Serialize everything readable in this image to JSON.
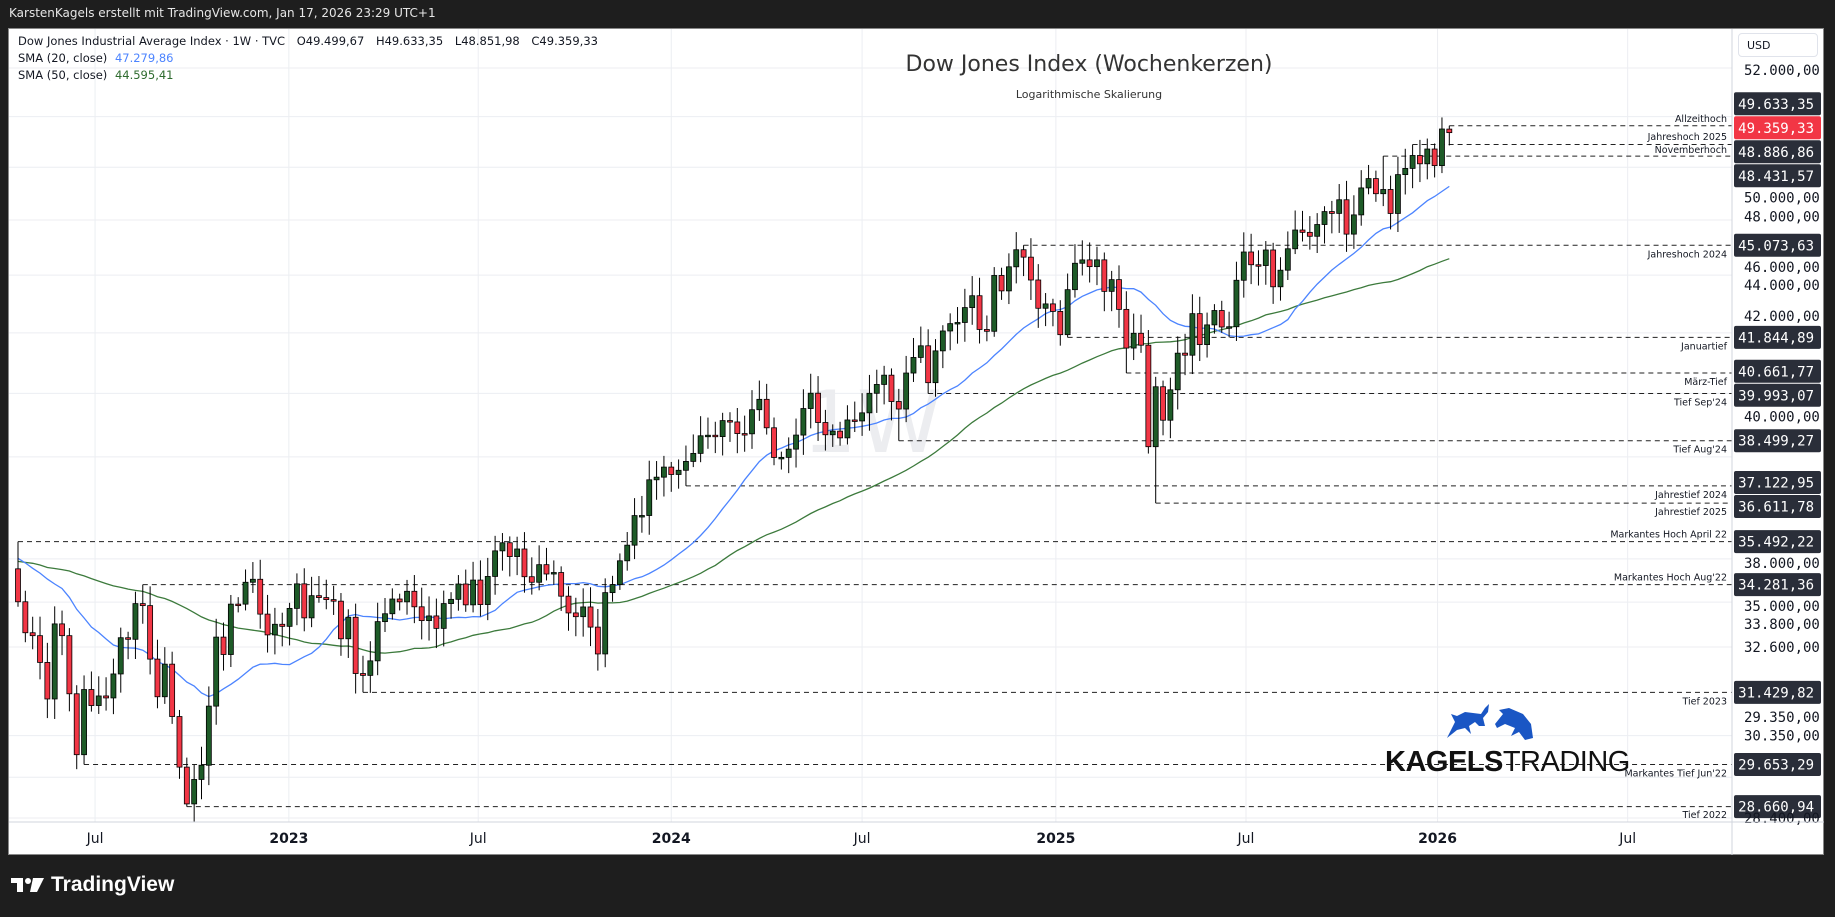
{
  "header": {
    "credit": "KarstenKagels erstellt mit TradingView.com, Jan 17, 2026 23:29 UTC+1"
  },
  "legend": {
    "symbol": "Dow Jones Industrial Average Index · 1W · TVC",
    "open": "O49.499,67",
    "high": "H49.633,35",
    "low": "L48.851,98",
    "close": "C49.359,33",
    "sma20_label": "SMA (20, close)",
    "sma20_value": "47.279,86",
    "sma50_label": "SMA (50, close)",
    "sma50_value": "44.595,41"
  },
  "annotation": {
    "title": "Dow Jones Index (Wochenkerzen)",
    "subtitle": "Logarithmische Skalierung",
    "watermark": "1W"
  },
  "price_axis": {
    "currency": "USD"
  },
  "branding": {
    "kagels_bold": "KAGELS",
    "kagels_light": "TRADING",
    "tradingview": "TradingView"
  },
  "colors": {
    "up": "#1e5b28",
    "down": "#f23645",
    "sma20": "#4c84ff",
    "sma50": "#3c7a3c",
    "label_bg": "#2a2e39",
    "current_bg": "#f23645"
  },
  "chart_data": {
    "type": "candlestick",
    "title": "Dow Jones Index (Wochenkerzen)",
    "scale": "log",
    "x_unit": "week index (0 = week of Apr 18, 2022)",
    "ylim": [
      28300,
      53000
    ],
    "y_ticks": [
      {
        "v": 52000,
        "label": "52.000,00"
      },
      {
        "v": 50000,
        "label": "50.000,00"
      },
      {
        "v": 48000,
        "label": "48.000,00"
      },
      {
        "v": 46000,
        "label": "46.000,00"
      },
      {
        "v": 44000,
        "label": "44.000,00"
      },
      {
        "v": 42000,
        "label": "42.000,00"
      },
      {
        "v": 40000,
        "label": "40.000,00"
      },
      {
        "v": 38000,
        "label": "38.000,00"
      },
      {
        "v": 35000,
        "label": "35.000,00"
      },
      {
        "v": 33800,
        "label": "33.800,00"
      },
      {
        "v": 32600,
        "label": "32.600,00"
      },
      {
        "v": 30350,
        "label": "30.350,00"
      },
      {
        "v": 29350,
        "label": "29.350,00"
      },
      {
        "v": 28400,
        "label": "28.400,00"
      }
    ],
    "x_ticks": [
      {
        "w": 10.5,
        "label": "Jul",
        "bold": false
      },
      {
        "w": 36.9,
        "label": "2023",
        "bold": true
      },
      {
        "w": 62.7,
        "label": "Jul",
        "bold": false
      },
      {
        "w": 89,
        "label": "2024",
        "bold": true
      },
      {
        "w": 115,
        "label": "Jul",
        "bold": false
      },
      {
        "w": 141.4,
        "label": "2025",
        "bold": true
      },
      {
        "w": 167.3,
        "label": "Jul",
        "bold": false
      },
      {
        "w": 193.4,
        "label": "2026",
        "bold": true
      },
      {
        "w": 219.3,
        "label": "Jul",
        "bold": false
      }
    ],
    "last_bar": {
      "open": 49499.67,
      "high": 49633.35,
      "low": 48851.98,
      "close": 49359.33
    },
    "current_price": {
      "value": 49359.33,
      "label": "49.359,33"
    },
    "history_closes": [
      34778,
      34382,
      34208,
      34529,
      34756,
      34630,
      34480,
      33290,
      33876,
      34433,
      34786,
      34870,
      34687,
      35061,
      34935,
      35208,
      35515,
      35120,
      35455,
      35369,
      34607,
      34798,
      34326,
      33843,
      34746,
      35295,
      35294,
      35677,
      35820,
      35819,
      36328,
      35601,
      35899,
      34899,
      34580,
      35971,
      35365,
      36302,
      36338,
      36231,
      35912,
      34265,
      34725,
      35089,
      34079,
      33059,
      33945,
      34754,
      34818,
      34721
    ],
    "closes": [
      33811,
      32977,
      32899,
      32197,
      31262,
      33213,
      32899,
      31393,
      29888,
      31501,
      31097,
      31338,
      31288,
      31899,
      32845,
      32803,
      33761,
      33706,
      32283,
      31318,
      32152,
      30822,
      29590,
      28725,
      29297,
      29635,
      31082,
      32861,
      32403,
      33747,
      33746,
      34347,
      34430,
      33476,
      32920,
      33203,
      33147,
      33631,
      34303,
      33375,
      33978,
      33926,
      33870,
      33827,
      32817,
      33391,
      31910,
      31862,
      32238,
      33274,
      33486,
      33886,
      33809,
      34098,
      33674,
      33301,
      33427,
      33093,
      33762,
      33877,
      34299,
      33727,
      34408,
      33735,
      34509,
      35228,
      35459,
      35066,
      35281,
      34501,
      34347,
      34838,
      34577,
      34618,
      33964,
      33508,
      33407,
      33670,
      33127,
      32418,
      34061,
      34283,
      34947,
      35390,
      36245,
      36247,
      37306,
      37385,
      37690,
      37466,
      37593,
      37863,
      38109,
      38654,
      38671,
      38628,
      39131,
      39087,
      38723,
      38715,
      39475,
      39807,
      38904,
      37983,
      37986,
      38240,
      38676,
      39513,
      40004,
      39070,
      38686,
      38799,
      38589,
      39150,
      39119,
      39376,
      40001,
      40288,
      40590,
      39737,
      39497,
      40660,
      41175,
      41563,
      40345,
      41394,
      42063,
      42313,
      42352,
      42864,
      43276,
      42114,
      42052,
      43989,
      43445,
      44297,
      44911,
      44643,
      43828,
      42840,
      42992,
      42732,
      41938,
      43488,
      44424,
      44545,
      44303,
      44546,
      43428,
      43841,
      42802,
      41488,
      41985,
      41583,
      38315,
      40213,
      39142,
      40114,
      41317,
      41249,
      42655,
      41603,
      42270,
      42763,
      42198,
      42207,
      43819,
      44829,
      44371,
      44342,
      44902,
      43589,
      44176,
      44946,
      45631,
      45545,
      45401,
      45834,
      46315,
      46247,
      46758,
      45480,
      46191,
      47207,
      47563,
      46987,
      47147,
      46245,
      47716,
      47955,
      48458,
      48134,
      48711,
      48063,
      49504,
      49359
    ],
    "levels": [
      {
        "value": 49633.35,
        "label": "49.633,35",
        "name": "Allzeithoch",
        "start_week": 195,
        "kind": "high",
        "side": "above"
      },
      {
        "value": 48886.86,
        "label": "48.886,86",
        "name": "Jahreshoch 2025",
        "start_week": 190,
        "kind": "high",
        "side": "above"
      },
      {
        "value": 48431.57,
        "label": "48.431,57",
        "name": "Novemberhoch",
        "start_week": 186,
        "kind": "high",
        "side": "above"
      },
      {
        "value": 45073.63,
        "label": "45.073,63",
        "name": "Jahreshoch 2024",
        "start_week": 137,
        "kind": "high",
        "side": "below"
      },
      {
        "value": 41844.89,
        "label": "41.844,89",
        "name": "Januartief",
        "start_week": 143,
        "kind": "low",
        "side": "below"
      },
      {
        "value": 40661.77,
        "label": "40.661,77",
        "name": "März-Tief",
        "start_week": 151,
        "kind": "low",
        "side": "below"
      },
      {
        "value": 39993.07,
        "label": "39.993,07",
        "name": "Tief Sep'24",
        "start_week": 124,
        "kind": "low",
        "side": "below"
      },
      {
        "value": 38499.27,
        "label": "38.499,27",
        "name": "Tief Aug'24",
        "start_week": 120,
        "kind": "low",
        "side": "below"
      },
      {
        "value": 37122.95,
        "label": "37.122,95",
        "name": "Jahrestief 2024",
        "start_week": 91,
        "kind": "low",
        "side": "below"
      },
      {
        "value": 36611.78,
        "label": "36.611,78",
        "name": "Jahrestief 2025",
        "start_week": 155,
        "kind": "low",
        "side": "below"
      },
      {
        "value": 35492.22,
        "label": "35.492,22",
        "name": "Markantes Hoch April 22",
        "start_week": 0,
        "kind": "high",
        "side": "above"
      },
      {
        "value": 34281.36,
        "label": "34.281,36",
        "name": "Markantes Hoch Aug'22",
        "start_week": 17,
        "kind": "high",
        "side": "above"
      },
      {
        "value": 31429.82,
        "label": "31.429,82",
        "name": "Tief 2023",
        "start_week": 47,
        "kind": "low",
        "side": "below"
      },
      {
        "value": 29653.29,
        "label": "29.653,29",
        "name": "Markantes Tief Jun'22",
        "start_week": 9,
        "kind": "low",
        "side": "below"
      },
      {
        "value": 28660.94,
        "label": "28.660,94",
        "name": "Tief 2022",
        "start_week": 23,
        "kind": "low",
        "side": "below"
      }
    ]
  }
}
